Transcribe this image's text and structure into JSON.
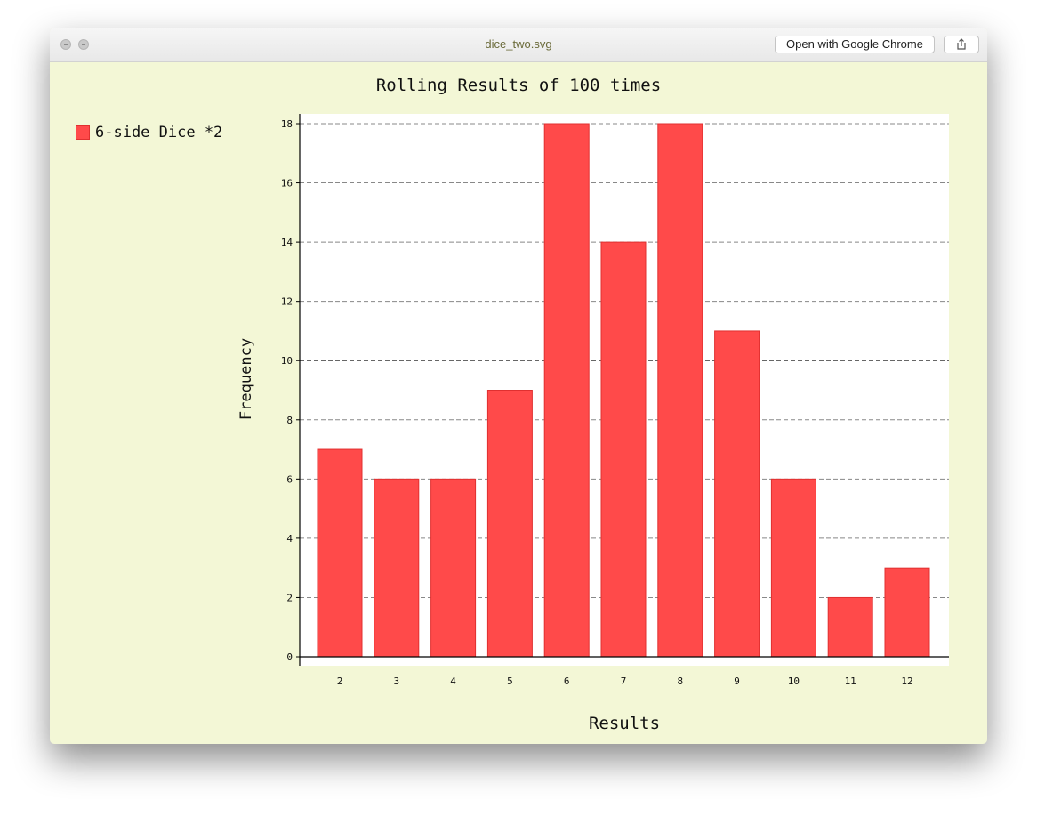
{
  "window": {
    "title": "dice_two.svg",
    "open_with_label": "Open with Google Chrome",
    "share_icon": "share-icon"
  },
  "chart_data": {
    "type": "bar",
    "title": "Rolling Results of 100 times",
    "xlabel": "Results",
    "ylabel": "Frequency",
    "categories": [
      "2",
      "3",
      "4",
      "5",
      "6",
      "7",
      "8",
      "9",
      "10",
      "11",
      "12"
    ],
    "series": [
      {
        "name": "6-side Dice *2",
        "values": [
          7,
          6,
          6,
          9,
          18,
          14,
          18,
          11,
          6,
          2,
          3
        ],
        "color": "#ff4a4a"
      }
    ],
    "ylim": [
      0,
      18
    ],
    "yticks": [
      0,
      2,
      4,
      6,
      8,
      10,
      12,
      14,
      16,
      18
    ],
    "grid": true,
    "legend": "top-left"
  }
}
